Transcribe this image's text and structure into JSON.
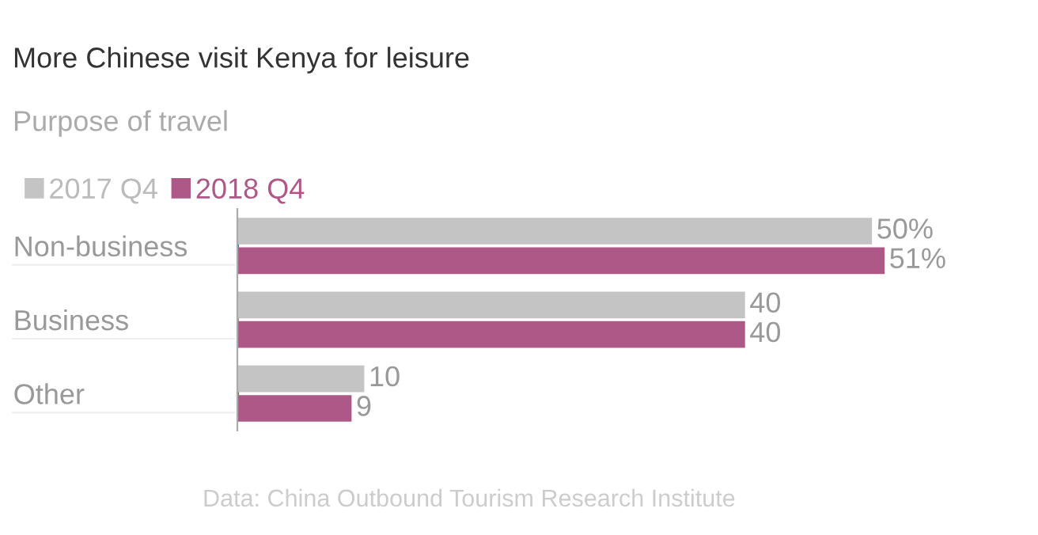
{
  "chart_data": {
    "type": "bar",
    "orientation": "horizontal",
    "title": "More Chinese visit Kenya for leisure",
    "legend_title": "Purpose of travel",
    "categories": [
      "Non-business",
      "Business",
      "Other"
    ],
    "series": [
      {
        "name": "2017 Q4",
        "color": "#c4c4c4",
        "values": [
          50,
          40,
          10
        ],
        "value_labels": [
          "50%",
          "40",
          "10"
        ]
      },
      {
        "name": "2018 Q4",
        "color": "#ad5887",
        "values": [
          51,
          40,
          9
        ],
        "value_labels": [
          "51%",
          "40",
          "9"
        ]
      }
    ],
    "legend": "top left",
    "grid": false,
    "annotations": [
      "Data: China Outbound Tourism Research Institute"
    ]
  }
}
